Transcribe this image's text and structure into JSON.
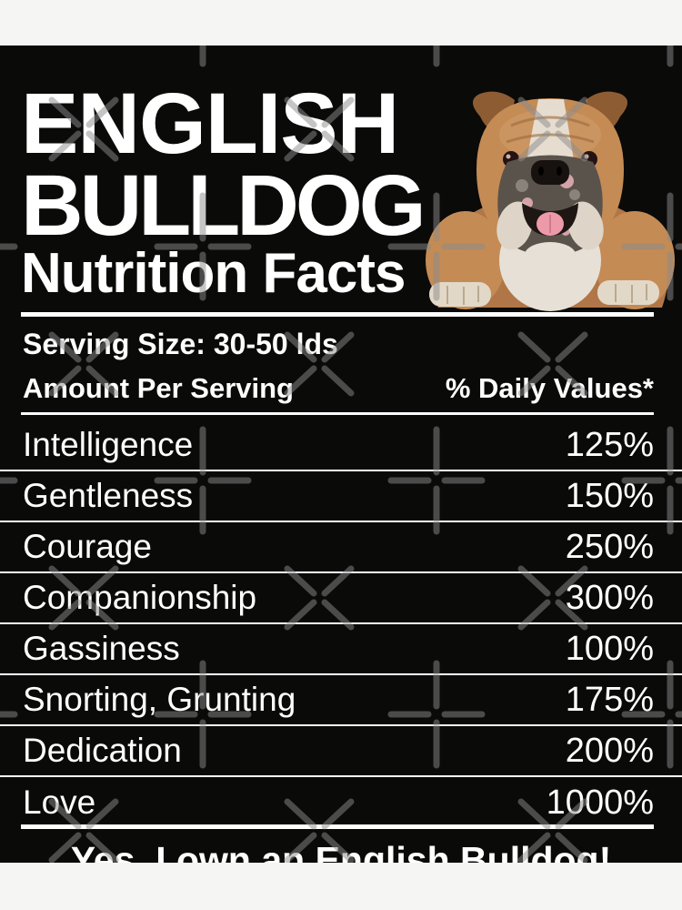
{
  "title": {
    "line1": "ENGLISH",
    "line2": "BULLDOG",
    "subtitle": "Nutrition Facts"
  },
  "serving": {
    "size_label": "Serving Size: 30-50 lds",
    "amount_per_serving": "Amount Per Serving",
    "daily_values": "% Daily Values*"
  },
  "facts": [
    {
      "label": "Intelligence",
      "value": "125%"
    },
    {
      "label": "Gentleness",
      "value": "150%"
    },
    {
      "label": "Courage",
      "value": "250%"
    },
    {
      "label": "Companionship",
      "value": "300%"
    },
    {
      "label": "Gassiness",
      "value": "100%"
    },
    {
      "label": "Snorting, Grunting",
      "value": "175%"
    },
    {
      "label": "Dedication",
      "value": "200%"
    },
    {
      "label": "Love",
      "value": "1000%"
    }
  ],
  "footer": {
    "message": "Yes, I own an English Bulldog!"
  },
  "hero": {
    "icon": "english-bulldog-photo"
  },
  "colors": {
    "canvas": "#f5f5f4",
    "artwork_bg": "#0a0a09",
    "text": "#ffffff",
    "divider": "#ffffff",
    "watermark": "#8c8c8c",
    "dog_fawn": "#c48b55",
    "dog_cream": "#e7e0d6",
    "dog_muzzle": "#5a534c",
    "dog_tongue": "#ec9aa9"
  }
}
